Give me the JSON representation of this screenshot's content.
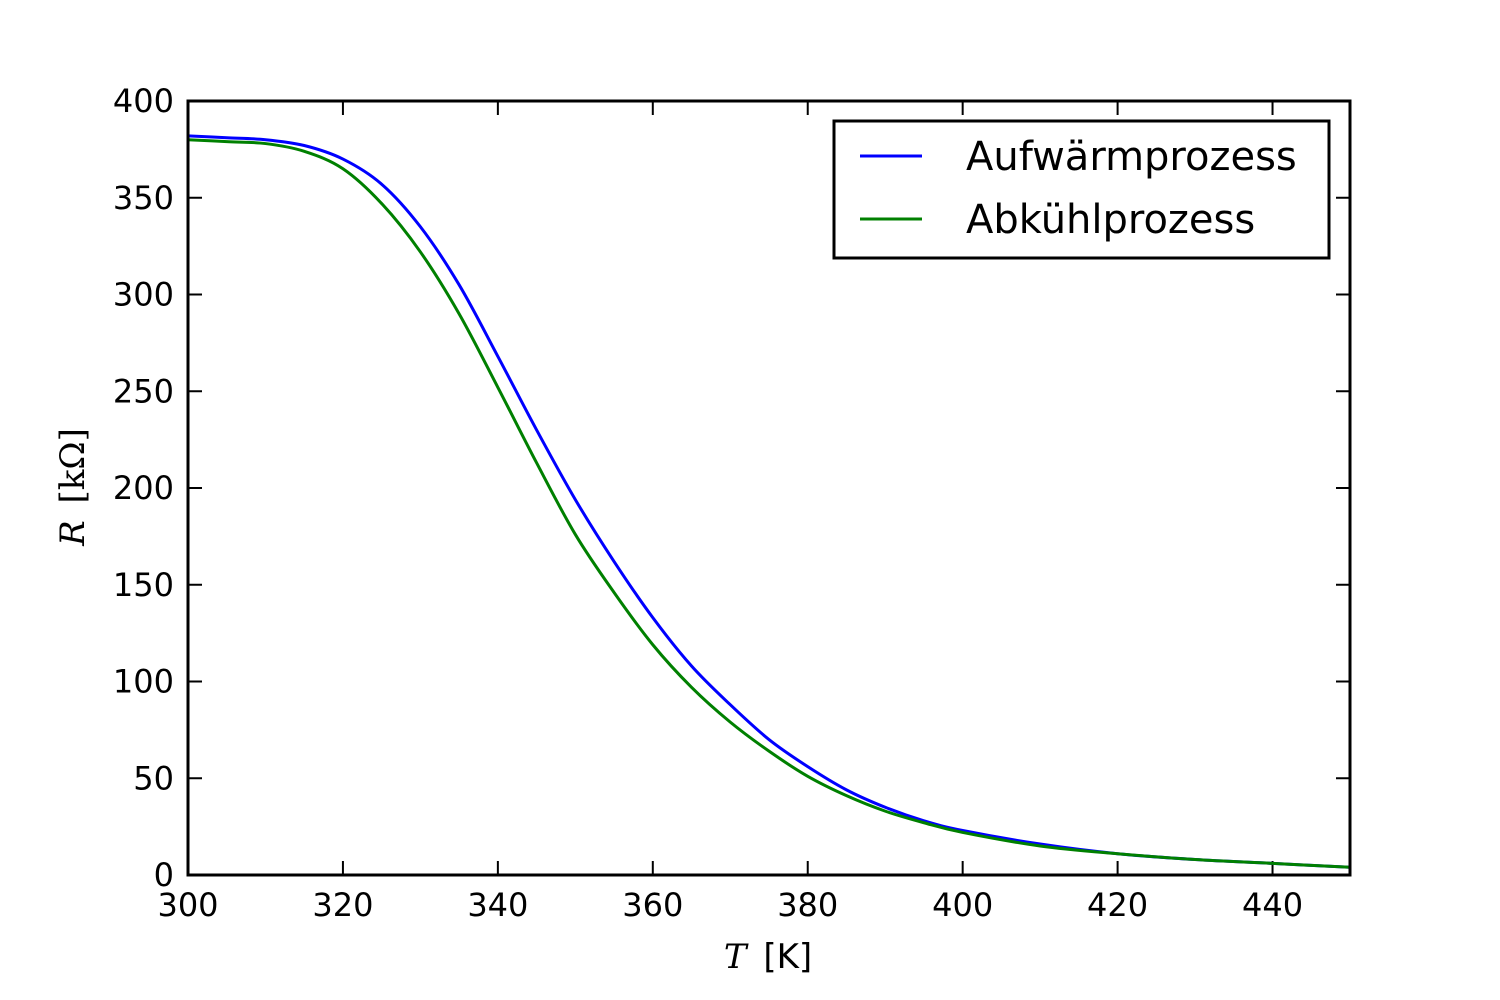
{
  "chart_data": {
    "type": "line",
    "xlabel": {
      "var": "T",
      "unit": "[K]"
    },
    "ylabel": {
      "var": "R",
      "unit": "[kΩ]"
    },
    "xlim": [
      300,
      450
    ],
    "ylim": [
      0,
      400
    ],
    "xticks": [
      300,
      320,
      340,
      360,
      380,
      400,
      420,
      440
    ],
    "yticks": [
      0,
      50,
      100,
      150,
      200,
      250,
      300,
      350,
      400
    ],
    "grid": false,
    "legend": "top-right",
    "series": [
      {
        "name": "Aufwärmprozess",
        "color": "#0000ff",
        "x": [
          300,
          305,
          310,
          315,
          320,
          325,
          330,
          335,
          340,
          345,
          350,
          355,
          360,
          365,
          370,
          375,
          380,
          385,
          390,
          395,
          400,
          410,
          420,
          430,
          440,
          450
        ],
        "y": [
          382,
          381,
          380,
          377,
          370,
          357,
          335,
          305,
          268,
          230,
          194,
          162,
          133,
          108,
          88,
          70,
          56,
          44,
          35,
          28,
          23,
          16,
          11,
          8,
          6,
          4
        ]
      },
      {
        "name": "Abkühlprozess",
        "color": "#008000",
        "x": [
          300,
          305,
          310,
          315,
          320,
          325,
          330,
          335,
          340,
          345,
          350,
          355,
          360,
          365,
          370,
          375,
          380,
          385,
          390,
          395,
          400,
          410,
          420,
          430,
          440,
          450
        ],
        "y": [
          380,
          379,
          378,
          374,
          365,
          347,
          322,
          290,
          252,
          213,
          176,
          146,
          119,
          97,
          79,
          64,
          51,
          41,
          33,
          27,
          22,
          15,
          11,
          8,
          6,
          4
        ]
      }
    ]
  }
}
